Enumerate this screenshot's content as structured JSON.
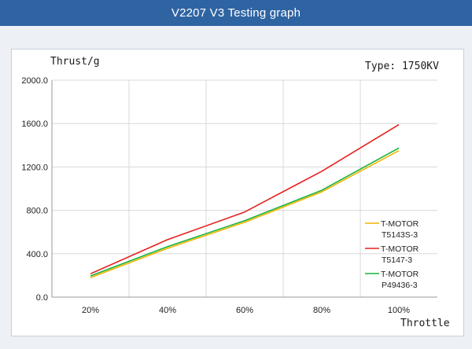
{
  "header": {
    "title": "V2207 V3 Testing graph"
  },
  "chart_data": {
    "type": "line",
    "title": "",
    "ylabel": "Thrust/g",
    "xlabel": "Throttle",
    "annotation": "Type:  1750KV",
    "categories": [
      "20%",
      "40%",
      "60%",
      "80%",
      "100%"
    ],
    "ylim": [
      0,
      2000
    ],
    "yticks": [
      "0.0",
      "400.0",
      "800.0",
      "1200.0",
      "1600.0",
      "2000.0"
    ],
    "grid": true,
    "legend_position": "right",
    "series": [
      {
        "name": "T-MOTOR T5143S-3",
        "label_lines": [
          "T-MOTOR",
          "T5143S-3"
        ],
        "color": "#f0b400",
        "values": [
          180,
          450,
          690,
          970,
          1350
        ]
      },
      {
        "name": "T-MOTOR T5147-3",
        "label_lines": [
          "T-MOTOR",
          "T5147-3"
        ],
        "color": "#e8201f",
        "values": [
          215,
          530,
          785,
          1160,
          1590
        ]
      },
      {
        "name": "T-MOTOR P49436-3",
        "label_lines": [
          "T-MOTOR",
          "P49436-3"
        ],
        "color": "#19b23a",
        "values": [
          195,
          465,
          705,
          985,
          1375
        ]
      }
    ]
  }
}
